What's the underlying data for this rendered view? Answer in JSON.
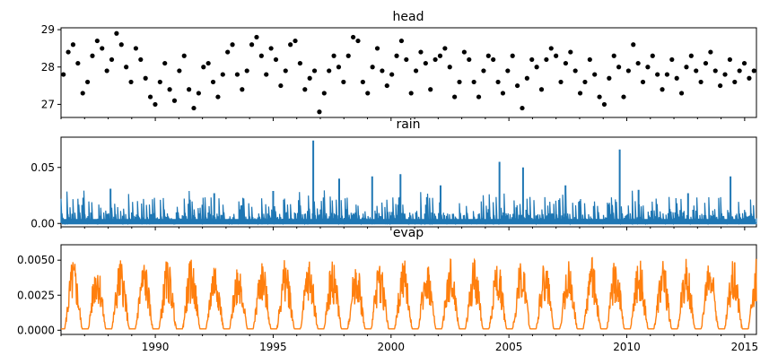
{
  "chart_data": [
    {
      "type": "scatter",
      "title": "head",
      "color": "#000000",
      "xlim": [
        1986.0,
        2015.5
      ],
      "ylim": [
        26.65,
        29.05
      ],
      "yticks": [
        27,
        28,
        29
      ],
      "ytick_labels": [
        "27",
        "28",
        "29"
      ],
      "x_tick_labels_visible": false,
      "sample_rate_per_year": 24,
      "y": [
        27.8,
        28.4,
        28.6,
        28.1,
        27.3,
        27.6,
        28.3,
        28.7,
        28.5,
        27.9,
        28.2,
        28.9,
        28.6,
        28.0,
        27.6,
        28.5,
        28.2,
        27.7,
        27.2,
        27.0,
        27.6,
        28.1,
        27.4,
        27.1,
        27.9,
        28.3,
        27.4,
        26.9,
        27.3,
        28.0,
        28.1,
        27.6,
        27.2,
        27.8,
        28.4,
        28.6,
        27.8,
        27.4,
        27.9,
        28.6,
        28.8,
        28.3,
        27.8,
        28.5,
        28.2,
        27.5,
        27.9,
        28.6,
        28.7,
        28.1,
        27.4,
        27.7,
        27.9,
        26.8,
        27.3,
        27.9,
        28.3,
        28.0,
        27.6,
        28.3,
        28.8,
        28.7,
        27.6,
        27.3,
        28.0,
        28.5,
        27.9,
        27.5,
        27.8,
        28.3,
        28.7,
        28.2,
        27.3,
        27.9,
        28.4,
        28.1,
        27.4,
        28.2,
        28.3,
        28.5,
        28.0,
        27.2,
        27.6,
        28.4,
        28.2,
        27.6,
        27.2,
        27.9,
        28.3,
        28.2,
        27.6,
        27.3,
        27.9,
        28.3,
        27.5,
        26.9,
        27.7,
        28.2,
        28.0,
        27.4,
        28.2,
        28.5,
        28.3,
        27.6,
        28.1,
        28.4,
        27.9,
        27.3,
        27.6,
        28.2,
        27.8,
        27.2,
        27.0,
        27.7,
        28.3,
        28.0,
        27.2,
        27.9,
        28.6,
        28.1,
        27.6,
        28.0,
        28.3,
        27.8,
        27.4,
        27.8,
        28.2,
        27.7,
        27.3,
        28.0,
        28.3,
        27.9,
        27.6,
        28.1,
        28.4,
        27.9,
        27.5,
        27.8,
        28.2,
        27.6,
        27.9,
        28.1,
        27.7,
        27.9
      ]
    },
    {
      "type": "line",
      "title": "rain",
      "color": "#1f77b4",
      "xlim": [
        1986.0,
        2015.5
      ],
      "ylim": [
        -0.003,
        0.077
      ],
      "yticks": [
        0.0,
        0.05
      ],
      "ytick_labels": [
        "0.00",
        "0.05"
      ],
      "x_tick_labels_visible": false,
      "peaks": [
        [
          1996.7,
          0.074
        ],
        [
          1997.8,
          0.04
        ],
        [
          1999.2,
          0.042
        ],
        [
          2000.4,
          0.044
        ],
        [
          2004.6,
          0.055
        ],
        [
          2005.6,
          0.05
        ],
        [
          2009.7,
          0.066
        ],
        [
          2014.4,
          0.042
        ],
        [
          1988.1,
          0.031
        ],
        [
          1992.5,
          0.027
        ],
        [
          1995.0,
          0.029
        ],
        [
          2002.1,
          0.034
        ],
        [
          2007.4,
          0.034
        ],
        [
          2010.5,
          0.03
        ],
        [
          2012.6,
          0.027
        ]
      ]
    },
    {
      "type": "line",
      "title": "evap",
      "color": "#ff7f0e",
      "xlim": [
        1986.0,
        2015.5
      ],
      "ylim": [
        -0.0003,
        0.0061
      ],
      "yticks": [
        0.0,
        0.0025,
        0.005
      ],
      "ytick_labels": [
        "0.0000",
        "0.0025",
        "0.0050"
      ],
      "x_ticks": [
        1990,
        1995,
        2000,
        2005,
        2010,
        2015
      ],
      "x_tick_labels": [
        "1990",
        "1995",
        "2000",
        "2005",
        "2010",
        "2015"
      ],
      "annual_peak": 0.0052,
      "annual_min": 0.0001
    }
  ]
}
